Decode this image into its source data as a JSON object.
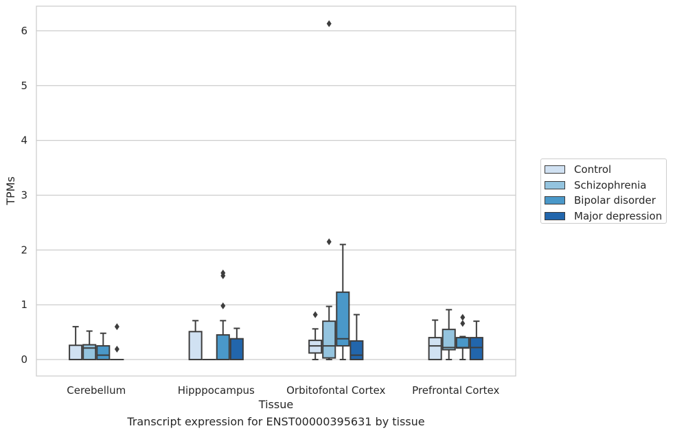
{
  "chart_data": {
    "type": "boxplot",
    "xlabel": "Tissue",
    "ylabel": "TPMs",
    "caption": "Transcript expression for ENST00000395631 by tissue",
    "ylim": [
      -0.3,
      6.45
    ],
    "yticks": [
      0,
      1,
      2,
      3,
      4,
      5,
      6
    ],
    "grid": "horizontal",
    "legend_position": "right",
    "categories": [
      "Cerebellum",
      "Hipppocampus",
      "Orbitofontal Cortex",
      "Prefrontal Cortex"
    ],
    "series": [
      {
        "name": "Control",
        "color": "#d0e1f2",
        "boxes": [
          {
            "q1": 0,
            "median": 0,
            "q3": 0.26,
            "whislo": 0,
            "whishi": 0.6,
            "fliers": []
          },
          {
            "q1": 0,
            "median": 0,
            "q3": 0.51,
            "whislo": 0,
            "whishi": 0.71,
            "fliers": []
          },
          {
            "q1": 0.12,
            "median": 0.25,
            "q3": 0.35,
            "whislo": 0,
            "whishi": 0.56,
            "fliers": [
              0.82
            ]
          },
          {
            "q1": 0,
            "median": 0.25,
            "q3": 0.4,
            "whislo": 0,
            "whishi": 0.72,
            "fliers": []
          }
        ]
      },
      {
        "name": "Schizophrenia",
        "color": "#94c4df",
        "boxes": [
          {
            "q1": 0,
            "median": 0.21,
            "q3": 0.27,
            "whislo": 0,
            "whishi": 0.52,
            "fliers": []
          },
          {
            "q1": 0,
            "median": 0,
            "q3": 0,
            "whislo": 0,
            "whishi": 0,
            "fliers": []
          },
          {
            "q1": 0.03,
            "median": 0.25,
            "q3": 0.7,
            "whislo": 0,
            "whishi": 0.97,
            "fliers": [
              2.15,
              6.13
            ]
          },
          {
            "q1": 0.18,
            "median": 0.22,
            "q3": 0.55,
            "whislo": 0,
            "whishi": 0.91,
            "fliers": []
          }
        ]
      },
      {
        "name": "Bipolar disorder",
        "color": "#4a98c9",
        "boxes": [
          {
            "q1": 0,
            "median": 0.08,
            "q3": 0.25,
            "whislo": 0,
            "whishi": 0.48,
            "fliers": []
          },
          {
            "q1": 0,
            "median": 0,
            "q3": 0.45,
            "whislo": 0,
            "whishi": 0.71,
            "fliers": [
              0.98,
              1.53,
              1.58
            ]
          },
          {
            "q1": 0.25,
            "median": 0.38,
            "q3": 1.23,
            "whislo": 0,
            "whishi": 2.1,
            "fliers": []
          },
          {
            "q1": 0.21,
            "median": 0.22,
            "q3": 0.4,
            "whislo": 0,
            "whishi": 0.42,
            "fliers": [
              0.66,
              0.77
            ]
          }
        ]
      },
      {
        "name": "Major depression",
        "color": "#2266ac",
        "boxes": [
          {
            "q1": 0,
            "median": 0,
            "q3": 0,
            "whislo": 0,
            "whishi": 0,
            "fliers": [
              0.19,
              0.6
            ]
          },
          {
            "q1": 0,
            "median": 0,
            "q3": 0.38,
            "whislo": 0,
            "whishi": 0.57,
            "fliers": []
          },
          {
            "q1": 0,
            "median": 0.08,
            "q3": 0.34,
            "whislo": 0,
            "whishi": 0.82,
            "fliers": []
          },
          {
            "q1": 0,
            "median": 0.22,
            "q3": 0.4,
            "whislo": 0,
            "whishi": 0.7,
            "fliers": []
          }
        ]
      }
    ]
  }
}
